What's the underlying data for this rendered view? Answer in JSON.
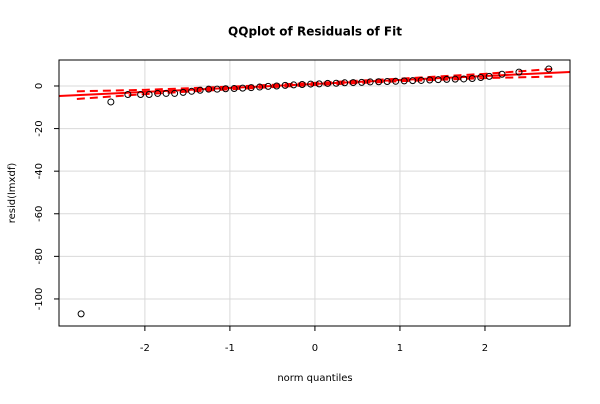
{
  "chart_data": {
    "type": "qqplot",
    "title": "QQplot of Residuals of Fit",
    "x_label": "norm quantiles",
    "y_label": "resid(lmxdf)",
    "xlim": [
      -3.01,
      3.0
    ],
    "ylim": [
      -112.7,
      12.2
    ],
    "xticks": [
      -2,
      -1,
      0,
      1,
      2
    ],
    "yticks": [
      -100,
      -80,
      -60,
      -40,
      -20,
      0
    ],
    "grid": true,
    "points": {
      "color": "#000000",
      "x": [
        -2.75,
        -2.4,
        -2.2,
        -2.05,
        -1.95,
        -1.85,
        -1.75,
        -1.65,
        -1.55,
        -1.45,
        -1.35,
        -1.25,
        -1.15,
        -1.05,
        -0.95,
        -0.85,
        -0.75,
        -0.65,
        -0.55,
        -0.45,
        -0.35,
        -0.25,
        -0.15,
        -0.05,
        0.05,
        0.15,
        0.25,
        0.35,
        0.45,
        0.55,
        0.65,
        0.75,
        0.85,
        0.95,
        1.05,
        1.15,
        1.25,
        1.35,
        1.45,
        1.55,
        1.65,
        1.75,
        1.85,
        1.95,
        2.05,
        2.2,
        2.4,
        2.75
      ],
      "y": [
        -107,
        -7.5,
        -4,
        -4,
        -4,
        -3.5,
        -3.5,
        -3.5,
        -3,
        -2.5,
        -2,
        -1.5,
        -1.5,
        -1.3,
        -1.2,
        -1,
        -0.8,
        -0.5,
        -0.2,
        0,
        0.3,
        0.5,
        0.7,
        0.9,
        1,
        1.2,
        1.3,
        1.5,
        1.6,
        1.7,
        1.9,
        2,
        2.1,
        2.2,
        2.4,
        2.5,
        2.6,
        2.8,
        3,
        3.1,
        3.2,
        3.3,
        3.5,
        4,
        4.5,
        5.5,
        6.5,
        8
      ]
    },
    "fit_line": {
      "color": "#ff0000",
      "x": [
        -3.01,
        3.0
      ],
      "y": [
        -4.71,
        6.59
      ]
    },
    "band_upper": {
      "color": "#ff0000",
      "x": [
        -2.8,
        -2,
        -1,
        0,
        1,
        2,
        2.8
      ],
      "y": [
        -2.51,
        -1.81,
        -0.33,
        1.45,
        3.43,
        5.71,
        8.01
      ]
    },
    "band_lower": {
      "color": "#ff0000",
      "x": [
        -2.8,
        -2,
        -1,
        0,
        1,
        2,
        2.8
      ],
      "y": [
        -6.11,
        -3.81,
        -1.53,
        0.45,
        2.23,
        3.71,
        4.41
      ]
    }
  }
}
